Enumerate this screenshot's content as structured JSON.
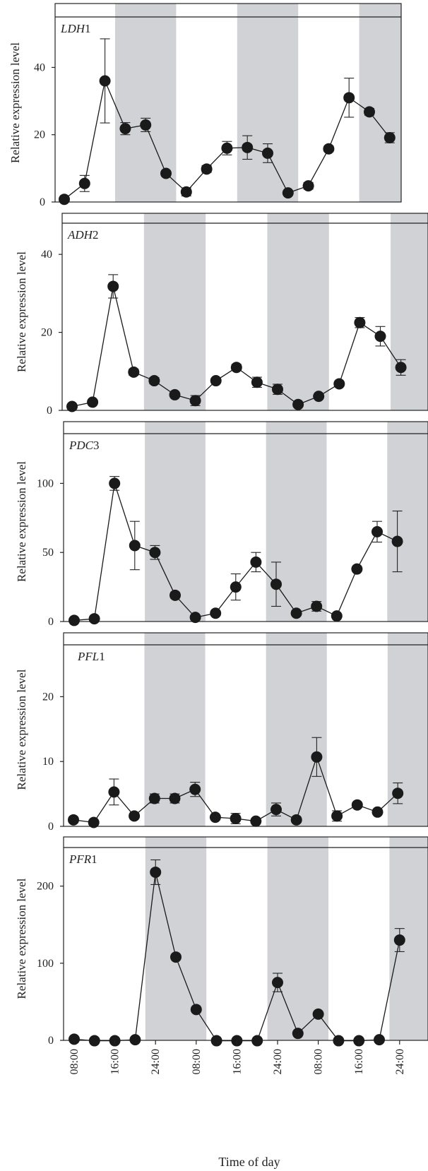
{
  "chart_data": [
    {
      "type": "line",
      "gene_italic": "LDH",
      "gene_suffix": "1",
      "ylabel": "Relative expression level",
      "ylim": [
        0,
        55
      ],
      "yticks": [
        0,
        20,
        40
      ],
      "x": [
        0,
        1,
        2,
        3,
        4,
        5,
        6,
        7,
        8,
        9,
        10,
        11,
        12,
        13,
        14,
        15,
        16,
        17
      ],
      "values": [
        0.8,
        5.5,
        36,
        21.8,
        22.9,
        8.5,
        3.0,
        9.8,
        16.0,
        16.2,
        14.5,
        2.7,
        4.8,
        15.8,
        31,
        26.8,
        19.1,
        null
      ],
      "errors": [
        0.4,
        2.4,
        12.5,
        1.8,
        2.0,
        0.8,
        1.2,
        1.0,
        2.0,
        3.5,
        2.8,
        0.5,
        1.0,
        0.8,
        5.8,
        1.0,
        1.5,
        0
      ],
      "dark_periods": [
        [
          2.5,
          5.5
        ],
        [
          8.5,
          11.5
        ],
        [
          14.5,
          17.5
        ]
      ]
    },
    {
      "type": "line",
      "gene_italic": "ADH",
      "gene_suffix": "2",
      "ylabel": "Relative expression level",
      "ylim": [
        0,
        48
      ],
      "yticks": [
        0,
        20,
        40
      ],
      "x": [
        0,
        1,
        2,
        3,
        4,
        5,
        6,
        7,
        8,
        9,
        10,
        11,
        12,
        13,
        14,
        15,
        16,
        17
      ],
      "values": [
        1.0,
        2.1,
        31.8,
        9.8,
        7.6,
        4.0,
        2.5,
        7.6,
        11.0,
        7.2,
        5.4,
        1.5,
        3.6,
        6.8,
        22.5,
        19.0,
        11.0,
        null
      ],
      "errors": [
        0.3,
        0.5,
        3.0,
        0.8,
        0.8,
        0.6,
        1.3,
        0.6,
        0.8,
        1.3,
        1.3,
        0.5,
        0.5,
        0.5,
        1.3,
        2.5,
        2.0,
        0
      ],
      "dark_periods": [
        [
          3.5,
          6.5
        ],
        [
          9.5,
          12.5
        ],
        [
          15.5,
          18.5
        ]
      ]
    },
    {
      "type": "line",
      "gene_italic": "PDC",
      "gene_suffix": "3",
      "ylabel": "Relative expression level",
      "ylim": [
        0,
        136
      ],
      "yticks": [
        0,
        50,
        100
      ],
      "x": [
        0,
        1,
        2,
        3,
        4,
        5,
        6,
        7,
        8,
        9,
        10,
        11,
        12,
        13,
        14,
        15,
        16,
        17
      ],
      "values": [
        0.8,
        2.0,
        100,
        55,
        50,
        19,
        3.0,
        6.0,
        25,
        43,
        27,
        6.0,
        11,
        4.0,
        38,
        65,
        58,
        null
      ],
      "errors": [
        0.4,
        0.8,
        5.0,
        17.5,
        5.0,
        2.0,
        0.8,
        1.5,
        9.5,
        7.0,
        16,
        1.0,
        3.5,
        0.5,
        1.5,
        7.5,
        22,
        0
      ],
      "dark_periods": [
        [
          3.5,
          6.5
        ],
        [
          9.5,
          12.5
        ],
        [
          15.5,
          18.5
        ]
      ]
    },
    {
      "type": "line",
      "gene_italic": "PFL",
      "gene_suffix": "1",
      "ylabel": "Relative expression level",
      "ylim": [
        0,
        28
      ],
      "yticks": [
        0,
        10,
        20
      ],
      "x": [
        0,
        1,
        2,
        3,
        4,
        5,
        6,
        7,
        8,
        9,
        10,
        11,
        12,
        13,
        14,
        15,
        16,
        17
      ],
      "values": [
        1.0,
        0.6,
        5.3,
        1.6,
        4.3,
        4.3,
        5.7,
        1.4,
        1.2,
        0.8,
        2.6,
        1.0,
        10.7,
        1.6,
        3.3,
        2.2,
        5.1,
        null
      ],
      "errors": [
        0.2,
        0.2,
        2.0,
        0.3,
        0.7,
        0.7,
        1.1,
        0.3,
        0.8,
        0.3,
        1.0,
        0.2,
        3.0,
        0.8,
        0.4,
        0.3,
        1.6,
        0
      ],
      "dark_periods": [
        [
          3.5,
          6.5
        ],
        [
          9.5,
          12.5
        ],
        [
          15.5,
          18.5
        ]
      ]
    },
    {
      "type": "line",
      "gene_italic": "PFR",
      "gene_suffix": "1",
      "ylabel": "Relative expression level",
      "ylim": [
        0,
        250
      ],
      "yticks": [
        0,
        100,
        200
      ],
      "x": [
        0,
        1,
        2,
        3,
        4,
        5,
        6,
        7,
        8,
        9,
        10,
        11,
        12,
        13,
        14,
        15,
        16,
        17
      ],
      "values": [
        1.5,
        -0.5,
        -0.5,
        0.8,
        218,
        108,
        40,
        -0.5,
        -0.5,
        -0.5,
        75,
        9.0,
        34,
        -0.5,
        -0.5,
        0.8,
        130,
        null
      ],
      "errors": [
        0,
        0,
        0,
        0,
        16,
        0,
        0,
        0,
        0,
        0,
        12,
        0,
        0,
        0,
        0,
        0,
        15,
        0
      ],
      "dark_periods": [
        [
          3.5,
          6.5
        ],
        [
          9.5,
          12.5
        ],
        [
          15.5,
          18.5
        ]
      ]
    }
  ],
  "x_axis": {
    "label": "Time of day",
    "tick_positions": [
      0,
      2,
      4,
      6,
      8,
      10,
      12,
      14,
      16
    ],
    "tick_labels": [
      "08:00",
      "16:00",
      "24:00",
      "08:00",
      "16:00",
      "24:00",
      "08:00",
      "16:00",
      "24:00"
    ]
  },
  "colors": {
    "dark_period": "#d0d2d5",
    "marker": "#1a1a1a",
    "line": "#1a1a1a"
  }
}
